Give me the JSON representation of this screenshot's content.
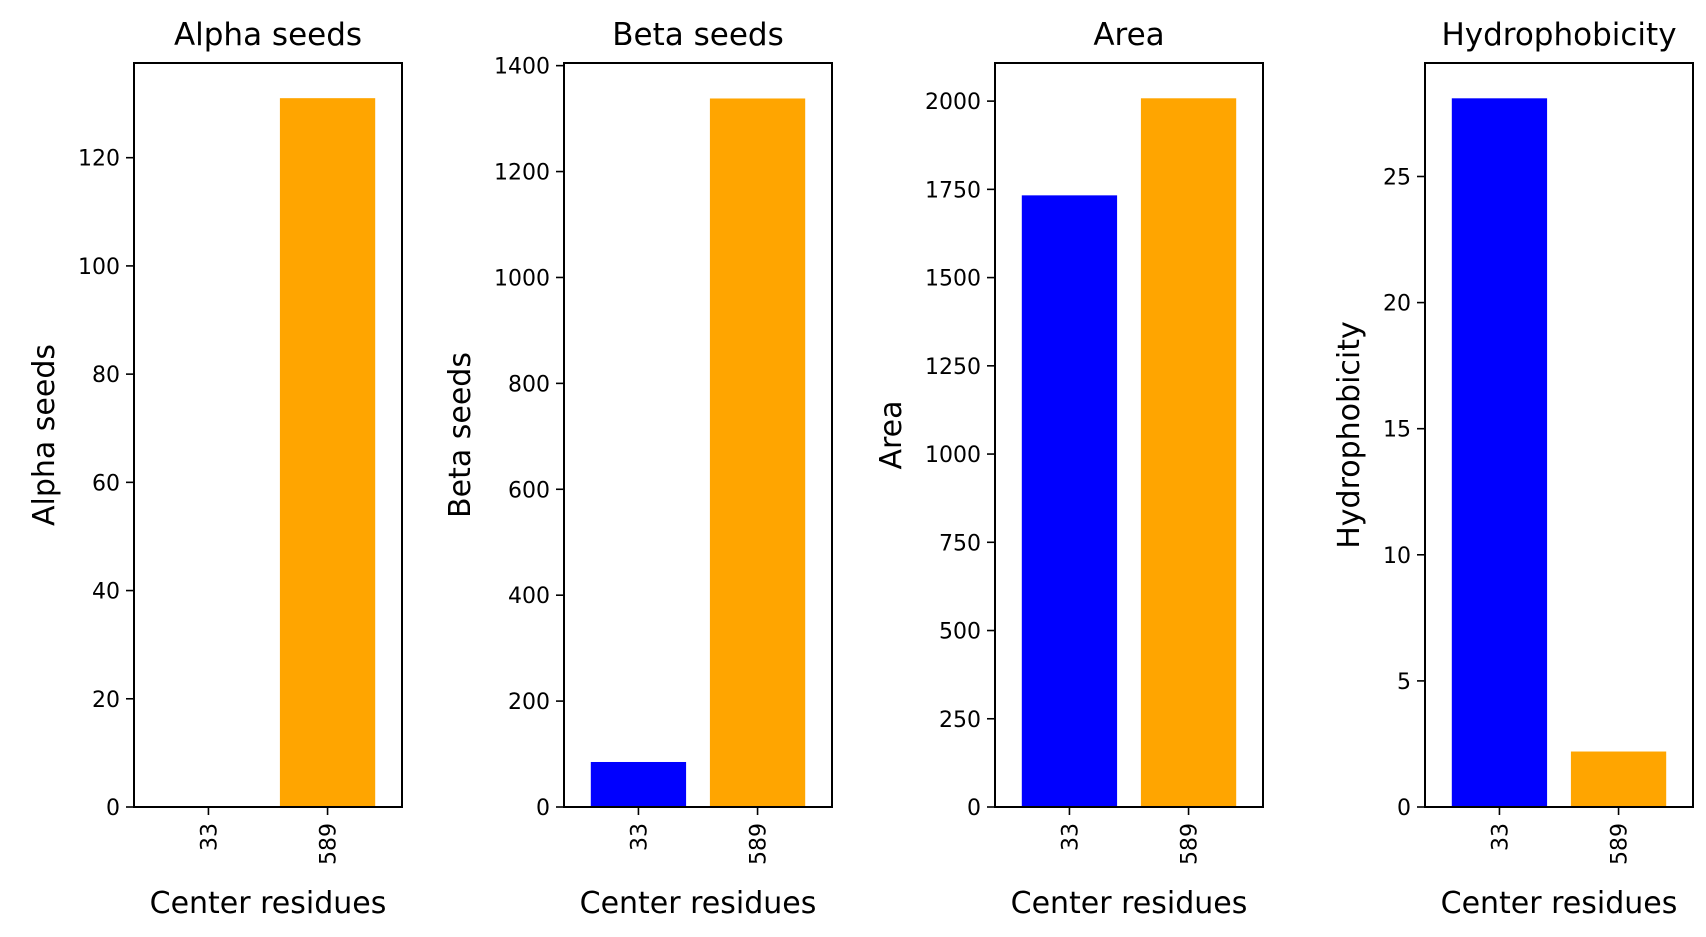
{
  "chart_data": [
    {
      "type": "bar",
      "title": "Alpha seeds",
      "xlabel": "Center residues",
      "ylabel": "Alpha seeds",
      "categories": [
        "33",
        "589"
      ],
      "values": [
        0,
        131
      ],
      "colors": [
        "#0000ff",
        "#ffa500"
      ],
      "ylim": [
        0,
        137.5
      ],
      "yticks": [
        0,
        20,
        40,
        60,
        80,
        100,
        120
      ],
      "grid": false
    },
    {
      "type": "bar",
      "title": "Beta seeds",
      "xlabel": "Center residues",
      "ylabel": "Beta seeds",
      "categories": [
        "33",
        "589"
      ],
      "values": [
        85,
        1338
      ],
      "colors": [
        "#0000ff",
        "#ffa500"
      ],
      "ylim": [
        0,
        1405
      ],
      "yticks": [
        0,
        200,
        400,
        600,
        800,
        1000,
        1200,
        1400
      ],
      "grid": false
    },
    {
      "type": "bar",
      "title": "Area",
      "xlabel": "Center residues",
      "ylabel": "Area",
      "categories": [
        "33",
        "589"
      ],
      "values": [
        1733,
        2008
      ],
      "colors": [
        "#0000ff",
        "#ffa500"
      ],
      "ylim": [
        0,
        2108
      ],
      "yticks": [
        0,
        250,
        500,
        750,
        1000,
        1250,
        1500,
        1750,
        2000
      ],
      "grid": false
    },
    {
      "type": "bar",
      "title": "Hydrophobicity",
      "xlabel": "Center residues",
      "ylabel": "Hydrophobicity",
      "categories": [
        "33",
        "589"
      ],
      "values": [
        28.1,
        2.2
      ],
      "colors": [
        "#0000ff",
        "#ffa500"
      ],
      "ylim": [
        0,
        29.5
      ],
      "yticks": [
        0,
        5,
        10,
        15,
        20,
        25
      ],
      "grid": false
    }
  ]
}
